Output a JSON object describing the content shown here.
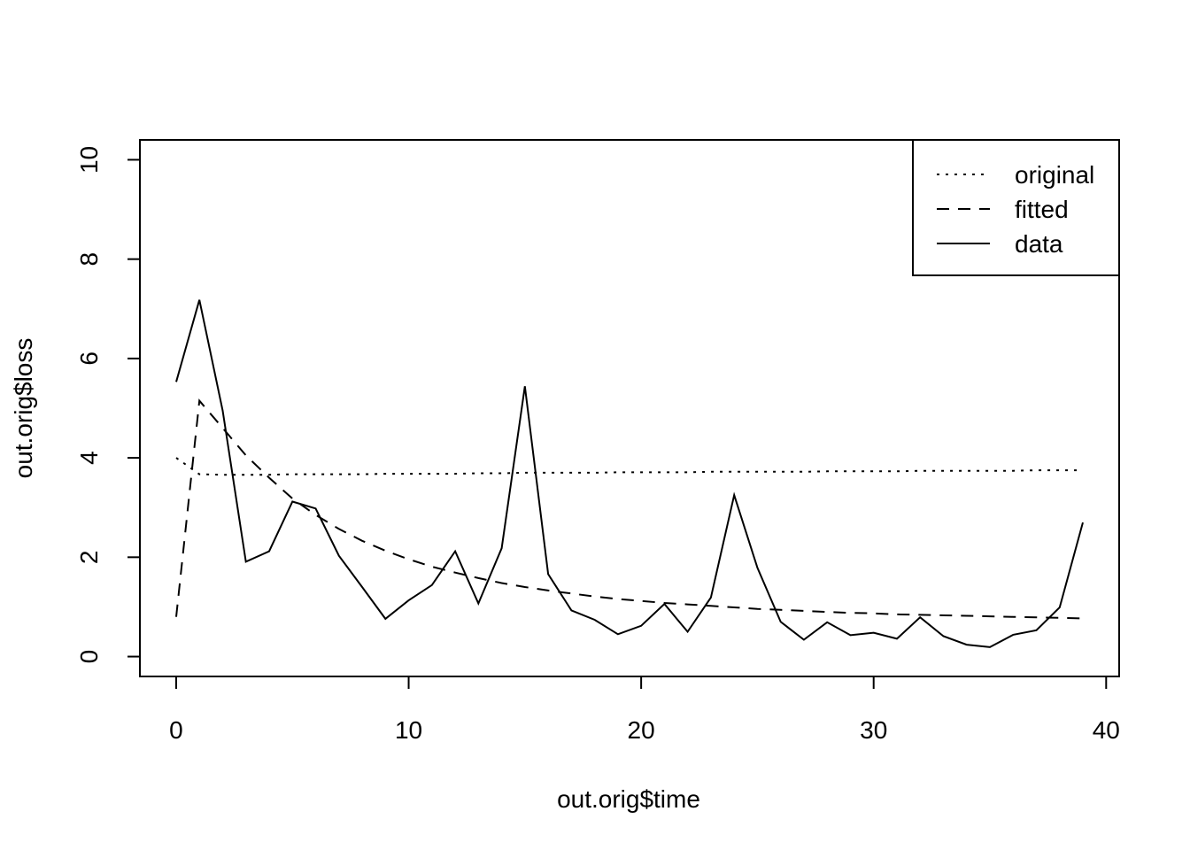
{
  "chart_data": {
    "type": "line",
    "title": "",
    "xlabel": "out.orig$time",
    "ylabel": "out.orig$loss",
    "xlim": [
      -1.56,
      40.56
    ],
    "ylim": [
      -0.4,
      10.4
    ],
    "x_ticks": [
      "0",
      "10",
      "20",
      "30",
      "40"
    ],
    "y_ticks": [
      "0",
      "2",
      "4",
      "6",
      "8",
      "10"
    ],
    "grid": false,
    "legend_position": "top-right",
    "x": [
      0,
      1,
      2,
      3,
      4,
      5,
      6,
      7,
      8,
      9,
      10,
      11,
      12,
      13,
      14,
      15,
      16,
      17,
      18,
      19,
      20,
      21,
      22,
      23,
      24,
      25,
      26,
      27,
      28,
      29,
      30,
      31,
      32,
      33,
      34,
      35,
      36,
      37,
      38,
      39
    ],
    "series": [
      {
        "name": "original",
        "dash": "dotted",
        "values": [
          4.0,
          3.67,
          3.66,
          3.66,
          3.66,
          3.67,
          3.67,
          3.67,
          3.67,
          3.68,
          3.68,
          3.68,
          3.68,
          3.69,
          3.69,
          3.7,
          3.7,
          3.7,
          3.7,
          3.71,
          3.71,
          3.71,
          3.71,
          3.72,
          3.72,
          3.72,
          3.72,
          3.72,
          3.73,
          3.73,
          3.73,
          3.73,
          3.74,
          3.74,
          3.74,
          3.74,
          3.74,
          3.75,
          3.75,
          3.75
        ]
      },
      {
        "name": "fitted",
        "dash": "dashed",
        "values": [
          0.8,
          5.15,
          4.6,
          4.05,
          3.6,
          3.18,
          2.85,
          2.57,
          2.33,
          2.13,
          1.96,
          1.81,
          1.69,
          1.58,
          1.48,
          1.4,
          1.33,
          1.27,
          1.21,
          1.16,
          1.12,
          1.08,
          1.05,
          1.02,
          0.99,
          0.96,
          0.94,
          0.92,
          0.9,
          0.88,
          0.87,
          0.85,
          0.84,
          0.83,
          0.82,
          0.81,
          0.8,
          0.79,
          0.78,
          0.77
        ]
      },
      {
        "name": "data",
        "dash": "solid",
        "values": [
          5.53,
          7.18,
          4.95,
          1.91,
          2.12,
          3.12,
          2.98,
          2.03,
          1.4,
          0.76,
          1.13,
          1.44,
          2.12,
          1.07,
          2.18,
          5.44,
          1.66,
          0.93,
          0.74,
          0.45,
          0.62,
          1.06,
          0.5,
          1.19,
          3.25,
          1.79,
          0.7,
          0.34,
          0.69,
          0.43,
          0.48,
          0.36,
          0.79,
          0.41,
          0.24,
          0.19,
          0.44,
          0.53,
          0.99,
          2.7
        ]
      }
    ]
  }
}
